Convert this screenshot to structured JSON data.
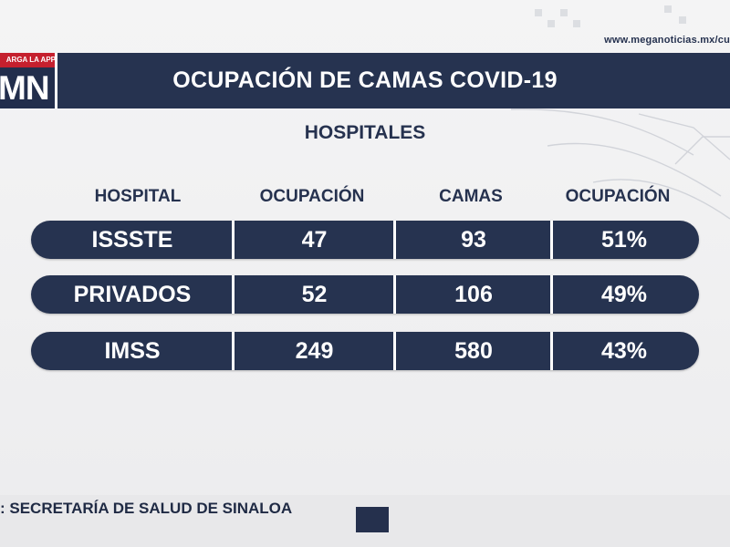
{
  "header": {
    "url": "www.meganoticias.mx/cu",
    "logo_strip": "ARGA LA APP",
    "logo": "MN",
    "title": "OCUPACIÓN DE CAMAS COVID-19"
  },
  "subtitle": "HOSPITALES",
  "table": {
    "columns": [
      "HOSPITAL",
      "OCUPACIÓN",
      "CAMAS",
      "OCUPACIÓN"
    ],
    "rows": [
      {
        "hospital": "ISSSTE",
        "ocupacion": "47",
        "camas": "93",
        "porcentaje": "51%"
      },
      {
        "hospital": "PRIVADOS",
        "ocupacion": "52",
        "camas": "106",
        "porcentaje": "49%"
      },
      {
        "hospital": "IMSS",
        "ocupacion": "249",
        "camas": "580",
        "porcentaje": "43%"
      }
    ]
  },
  "footer": {
    "source": ": SECRETARÍA DE SALUD DE SINALOA"
  },
  "colors": {
    "navy": "#263350",
    "red": "#c5202e",
    "text": "#26324f"
  }
}
